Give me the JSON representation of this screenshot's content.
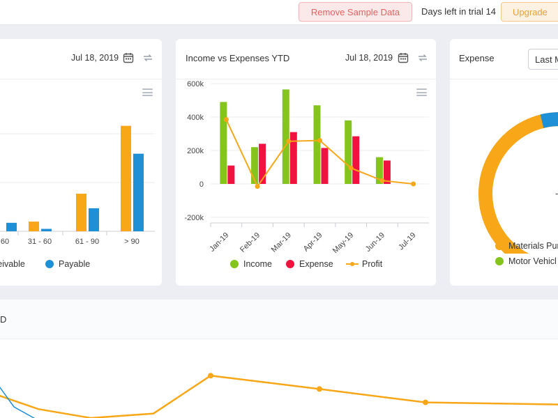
{
  "topbar": {
    "remove_label": "Remove Sample Data",
    "trial_text": "Days left in trial 14",
    "upgrade_label": "Upgrade"
  },
  "aging_card": {
    "date": "Jul 18, 2019",
    "legend": [
      "ceivable",
      "Payable"
    ],
    "colors": {
      "receivable": "#f7a717",
      "payable": "#1f8fd6"
    },
    "chart_data": {
      "type": "bar",
      "categories": [
        "60",
        "31 - 60",
        "61 - 90",
        "> 90"
      ],
      "series": [
        {
          "name": "Receivable",
          "values": [
            null,
            16,
            62,
            174
          ]
        },
        {
          "name": "Payable",
          "values": [
            14,
            4,
            38,
            128
          ]
        }
      ]
    }
  },
  "income_card": {
    "title": "Income vs Expenses YTD",
    "date": "Jul 18, 2019",
    "legend": [
      "Income",
      "Expense",
      "Profit"
    ],
    "colors": {
      "income": "#84c41c",
      "expense": "#f0123f",
      "profit": "#f7a717"
    },
    "chart_data": {
      "type": "bar",
      "categories": [
        "Jan-19",
        "Feb-19",
        "Mar-19",
        "Apr-19",
        "May-19",
        "Jun-19",
        "Jul-19"
      ],
      "y_ticks": [
        "600k",
        "400k",
        "200k",
        "0",
        "-200k"
      ],
      "ylim": [
        -200000,
        600000
      ],
      "series": [
        {
          "name": "Income",
          "type": "bar",
          "values": [
            490000,
            220000,
            565000,
            470000,
            380000,
            160000,
            0
          ]
        },
        {
          "name": "Expense",
          "type": "bar",
          "values": [
            110000,
            240000,
            310000,
            215000,
            285000,
            140000,
            0
          ]
        },
        {
          "name": "Profit",
          "type": "line",
          "values": [
            385000,
            -15000,
            255000,
            260000,
            95000,
            20000,
            0
          ]
        }
      ]
    }
  },
  "expense_card": {
    "title": "Expense",
    "select_value": "Last M",
    "legend": [
      "Materials Pur",
      "Motor Vehicl"
    ],
    "colors": {
      "materials": "#f7a717",
      "motor": "#84c41c",
      "other": "#1f8fd6"
    }
  },
  "bottom_card": {
    "title": "D",
    "chart_data": {
      "type": "line",
      "series": [
        {
          "name": "orange",
          "values": [
            0.55,
            0.2,
            0.0,
            0.1,
            0.95,
            0.65,
            0.35,
            0.3
          ]
        },
        {
          "name": "blue",
          "values": [
            0.9,
            0.25,
            -0.1
          ]
        }
      ]
    }
  }
}
